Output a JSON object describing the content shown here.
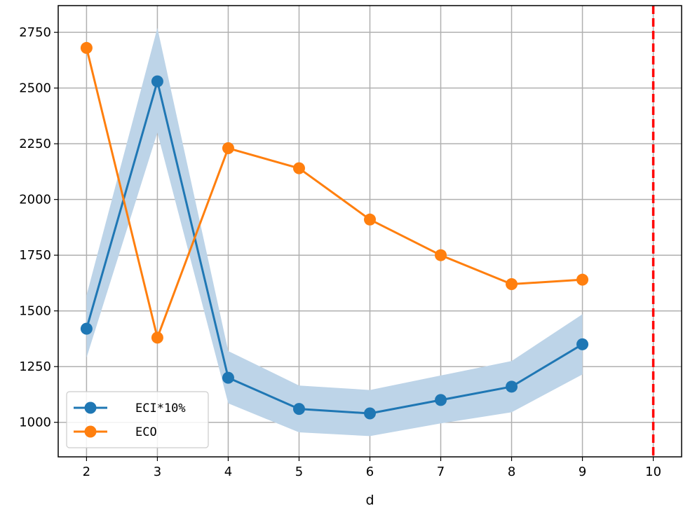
{
  "chart_data": {
    "type": "line",
    "title": "",
    "xlabel": "d",
    "ylabel": "",
    "xlim": [
      1.6,
      10.4
    ],
    "ylim": [
      845,
      2870
    ],
    "xticks": [
      2,
      3,
      4,
      5,
      6,
      7,
      8,
      9,
      10
    ],
    "yticks": [
      1000,
      1250,
      1500,
      1750,
      2000,
      2250,
      2500,
      2750
    ],
    "grid": true,
    "legend_position": "lower-left",
    "series": [
      {
        "name": "ECI*10%",
        "color": "#1f77b4",
        "x": [
          2,
          3,
          4,
          5,
          6,
          7,
          8,
          9
        ],
        "y": [
          1420,
          2530,
          1200,
          1060,
          1040,
          1100,
          1160,
          1350
        ],
        "band_lower": [
          1290,
          2300,
          1085,
          955,
          938,
          995,
          1045,
          1215
        ],
        "band_upper": [
          1570,
          2770,
          1320,
          1165,
          1145,
          1210,
          1275,
          1485
        ],
        "band_color": "#bdd4e8"
      },
      {
        "name": "ECO",
        "color": "#ff7f0e",
        "x": [
          2,
          3,
          4,
          5,
          6,
          7,
          8,
          9
        ],
        "y": [
          2680,
          1380,
          2230,
          2140,
          1910,
          1750,
          1620,
          1640
        ]
      }
    ],
    "vertical_line": {
      "x": 10,
      "color": "#ff0000",
      "style": "dashed"
    }
  }
}
